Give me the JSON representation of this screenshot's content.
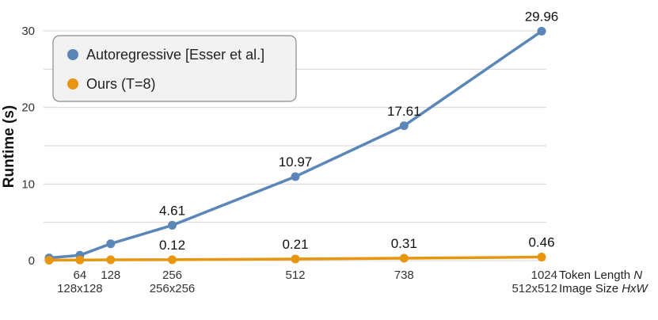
{
  "chart_data": {
    "type": "line",
    "ylabel": "Runtime (s)",
    "x_axis": {
      "token_label": "Token Length",
      "token_symbol": "N",
      "image_label": "Image Size",
      "image_symbol": "HxW",
      "token_ticks": [
        64,
        128,
        256,
        512,
        738,
        1024
      ],
      "image_ticks": [
        {
          "x": 64,
          "label": "128x128"
        },
        {
          "x": 256,
          "label": "256x256"
        },
        {
          "x": 1024,
          "label": "512x512"
        }
      ]
    },
    "y_ticks": [
      0,
      10,
      20,
      30
    ],
    "ylim": [
      0,
      30
    ],
    "grid": true,
    "legend_position": "top-left",
    "series": [
      {
        "name": "Autoregressive [Esser et al.]",
        "color": "#5b86b8",
        "points": [
          {
            "x": 0,
            "y": 0.35
          },
          {
            "x": 64,
            "y": 0.7
          },
          {
            "x": 128,
            "y": 2.2
          },
          {
            "x": 256,
            "y": 4.61,
            "label": "4.61"
          },
          {
            "x": 512,
            "y": 10.97,
            "label": "10.97"
          },
          {
            "x": 738,
            "y": 17.61,
            "label": "17.61"
          },
          {
            "x": 1024,
            "y": 29.96,
            "label": "29.96"
          }
        ]
      },
      {
        "name": "Ours (T=8)",
        "color": "#e8960f",
        "points": [
          {
            "x": 0,
            "y": 0.05
          },
          {
            "x": 64,
            "y": 0.08
          },
          {
            "x": 128,
            "y": 0.1
          },
          {
            "x": 256,
            "y": 0.12,
            "label": "0.12"
          },
          {
            "x": 512,
            "y": 0.21,
            "label": "0.21"
          },
          {
            "x": 738,
            "y": 0.31,
            "label": "0.31"
          },
          {
            "x": 1024,
            "y": 0.46,
            "label": "0.46"
          }
        ]
      }
    ]
  }
}
